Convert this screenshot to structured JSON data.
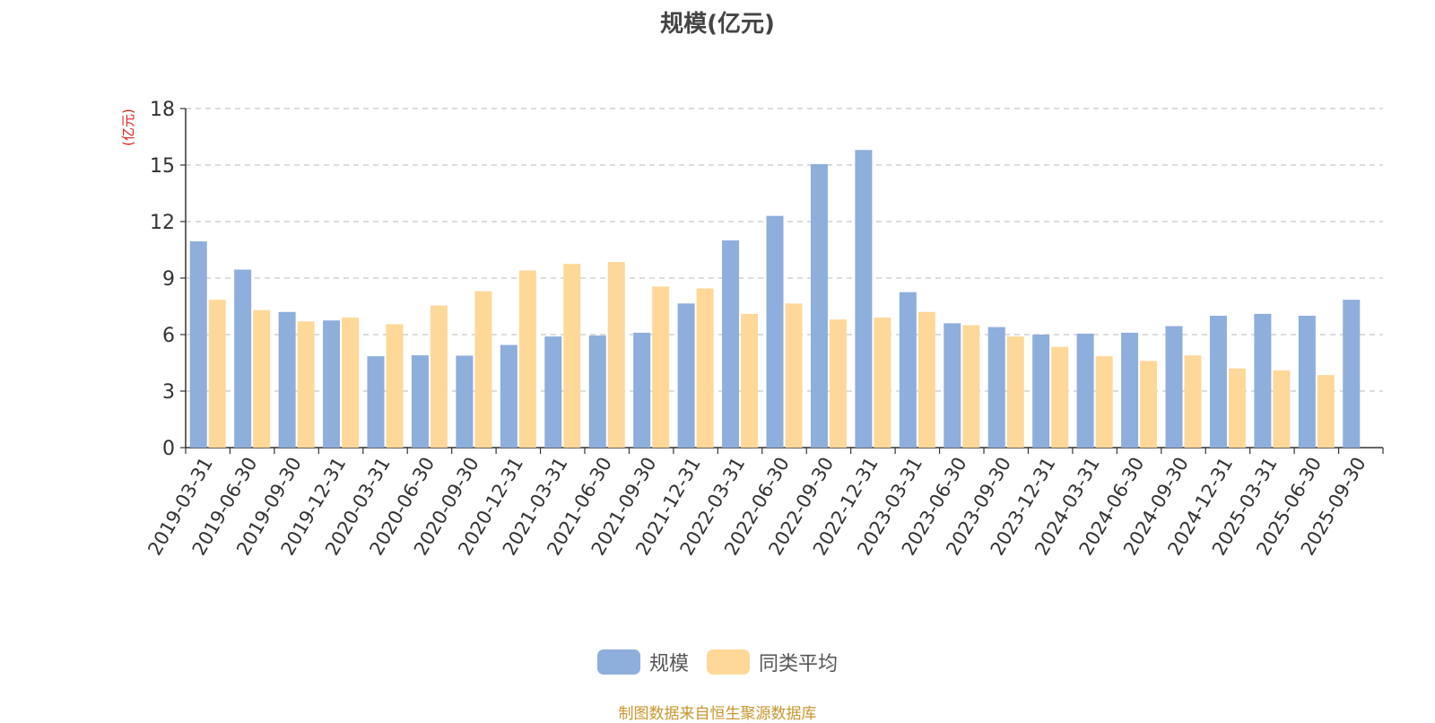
{
  "chart_data": {
    "type": "bar",
    "title": "规模(亿元)",
    "ylabel": "(亿元)",
    "xlabel": "",
    "ylim": [
      0,
      18
    ],
    "yticks": [
      0,
      3,
      6,
      9,
      12,
      15,
      18
    ],
    "grid": true,
    "legend_position": "bottom-center",
    "categories": [
      "2019-03-31",
      "2019-06-30",
      "2019-09-30",
      "2019-12-31",
      "2020-03-31",
      "2020-06-30",
      "2020-09-30",
      "2020-12-31",
      "2021-03-31",
      "2021-06-30",
      "2021-09-30",
      "2021-12-31",
      "2022-03-31",
      "2022-06-30",
      "2022-09-30",
      "2022-12-31",
      "2023-03-31",
      "2023-06-30",
      "2023-09-30",
      "2023-12-31",
      "2024-03-31",
      "2024-06-30",
      "2024-09-30",
      "2024-12-31",
      "2025-03-31",
      "2025-06-30",
      "2025-09-30"
    ],
    "series": [
      {
        "name": "规模",
        "color": "#8eaedb",
        "values": [
          10.95,
          9.45,
          7.2,
          6.75,
          4.85,
          4.9,
          4.88,
          5.45,
          5.9,
          5.95,
          6.1,
          7.65,
          11.0,
          12.3,
          15.05,
          15.8,
          8.25,
          6.6,
          6.4,
          6.0,
          6.05,
          6.1,
          6.45,
          7.0,
          7.1,
          7.0,
          7.85
        ]
      },
      {
        "name": "同类平均",
        "color": "#fdd899",
        "values": [
          7.85,
          7.3,
          6.7,
          6.9,
          6.55,
          7.55,
          8.3,
          9.4,
          9.75,
          9.85,
          8.55,
          8.45,
          7.1,
          7.65,
          6.8,
          6.9,
          7.2,
          6.5,
          5.9,
          5.35,
          4.85,
          4.6,
          4.9,
          4.2,
          4.1,
          3.85,
          null
        ]
      }
    ]
  },
  "footer": "制图数据来自恒生聚源数据库"
}
